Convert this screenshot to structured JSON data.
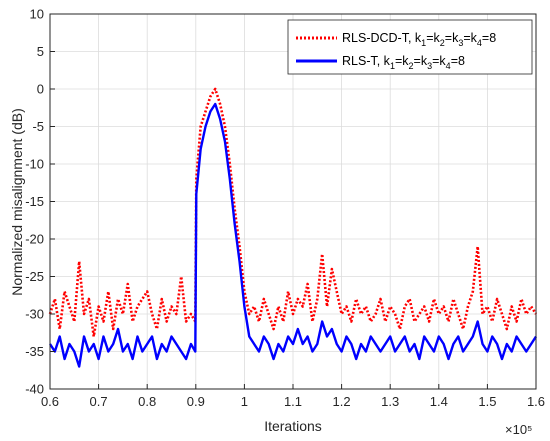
{
  "chart_data": {
    "type": "line",
    "xlabel": "Iterations",
    "ylabel": "Normalized misalignment (dB)",
    "x_multiplier": "×10⁵",
    "x_ticks": [
      "0.6",
      "0.7",
      "0.8",
      "0.9",
      "1",
      "1.1",
      "1.2",
      "1.3",
      "1.4",
      "1.5",
      "1.6"
    ],
    "y_ticks": [
      "-40",
      "-35",
      "-30",
      "-25",
      "-20",
      "-15",
      "-10",
      "-5",
      "0",
      "5",
      "10"
    ],
    "xlim": [
      0.6,
      1.6
    ],
    "ylim": [
      -40,
      10
    ],
    "grid": true,
    "legend_position": "top-right",
    "series": [
      {
        "name": "RLS-DCD-T, k1=k2=k3=k4=8",
        "color": "#ff0000",
        "style": "dotted",
        "x": [
          0.6,
          0.61,
          0.62,
          0.63,
          0.64,
          0.65,
          0.66,
          0.67,
          0.68,
          0.69,
          0.7,
          0.71,
          0.72,
          0.73,
          0.74,
          0.75,
          0.76,
          0.77,
          0.78,
          0.79,
          0.8,
          0.81,
          0.82,
          0.83,
          0.84,
          0.85,
          0.86,
          0.87,
          0.88,
          0.89,
          0.899,
          0.901,
          0.91,
          0.92,
          0.93,
          0.94,
          0.95,
          0.96,
          0.97,
          0.98,
          0.99,
          1.0,
          1.01,
          1.02,
          1.03,
          1.04,
          1.05,
          1.06,
          1.07,
          1.08,
          1.09,
          1.1,
          1.11,
          1.12,
          1.13,
          1.14,
          1.15,
          1.16,
          1.17,
          1.18,
          1.19,
          1.2,
          1.21,
          1.22,
          1.23,
          1.24,
          1.25,
          1.26,
          1.27,
          1.28,
          1.29,
          1.3,
          1.31,
          1.32,
          1.33,
          1.34,
          1.35,
          1.36,
          1.37,
          1.38,
          1.39,
          1.4,
          1.41,
          1.42,
          1.43,
          1.44,
          1.45,
          1.46,
          1.47,
          1.48,
          1.49,
          1.5,
          1.51,
          1.52,
          1.53,
          1.54,
          1.55,
          1.56,
          1.57,
          1.58,
          1.59,
          1.6
        ],
        "y": [
          -30,
          -28,
          -32,
          -27,
          -29,
          -31,
          -23,
          -30,
          -28,
          -33,
          -29,
          -31,
          -27,
          -32,
          -28,
          -30,
          -26,
          -31,
          -29,
          -28,
          -27,
          -30,
          -32,
          -28,
          -31,
          -29,
          -30,
          -25,
          -31,
          -30,
          -31,
          -12,
          -5,
          -3,
          -1,
          0,
          -2,
          -5,
          -10,
          -16,
          -21,
          -27,
          -30,
          -29,
          -31,
          -28,
          -30,
          -32,
          -29,
          -31,
          -27,
          -30,
          -28,
          -29,
          -26,
          -31,
          -28,
          -22,
          -29,
          -24,
          -27,
          -30,
          -29,
          -31,
          -28,
          -30,
          -29,
          -31,
          -30,
          -28,
          -31,
          -29,
          -30,
          -32,
          -29,
          -28,
          -31,
          -30,
          -29,
          -31,
          -28,
          -30,
          -29,
          -31,
          -28,
          -30,
          -32,
          -29,
          -27,
          -21,
          -30,
          -29,
          -31,
          -28,
          -30,
          -32,
          -29,
          -31,
          -28,
          -30,
          -29,
          -30
        ]
      },
      {
        "name": "RLS-T, k1=k2=k3=k4=8",
        "color": "#0000ff",
        "style": "solid",
        "x": [
          0.6,
          0.61,
          0.62,
          0.63,
          0.64,
          0.65,
          0.66,
          0.67,
          0.68,
          0.69,
          0.7,
          0.71,
          0.72,
          0.73,
          0.74,
          0.75,
          0.76,
          0.77,
          0.78,
          0.79,
          0.8,
          0.81,
          0.82,
          0.83,
          0.84,
          0.85,
          0.86,
          0.87,
          0.88,
          0.89,
          0.899,
          0.901,
          0.91,
          0.92,
          0.93,
          0.94,
          0.95,
          0.96,
          0.97,
          0.98,
          0.99,
          1.0,
          1.01,
          1.02,
          1.03,
          1.04,
          1.05,
          1.06,
          1.07,
          1.08,
          1.09,
          1.1,
          1.11,
          1.12,
          1.13,
          1.14,
          1.15,
          1.16,
          1.17,
          1.18,
          1.19,
          1.2,
          1.21,
          1.22,
          1.23,
          1.24,
          1.25,
          1.26,
          1.27,
          1.28,
          1.29,
          1.3,
          1.31,
          1.32,
          1.33,
          1.34,
          1.35,
          1.36,
          1.37,
          1.38,
          1.39,
          1.4,
          1.41,
          1.42,
          1.43,
          1.44,
          1.45,
          1.46,
          1.47,
          1.48,
          1.49,
          1.5,
          1.51,
          1.52,
          1.53,
          1.54,
          1.55,
          1.56,
          1.57,
          1.58,
          1.59,
          1.6
        ],
        "y": [
          -34,
          -35,
          -33,
          -36,
          -34,
          -35,
          -37,
          -33,
          -35,
          -34,
          -36,
          -33,
          -35,
          -34,
          -32,
          -35,
          -34,
          -36,
          -33,
          -35,
          -34,
          -33,
          -36,
          -34,
          -35,
          -33,
          -34,
          -35,
          -36,
          -34,
          -35,
          -14,
          -8,
          -5,
          -3,
          -2,
          -4,
          -7,
          -12,
          -18,
          -23,
          -29,
          -33,
          -34,
          -35,
          -33,
          -34,
          -36,
          -34,
          -35,
          -33,
          -34,
          -32,
          -34,
          -33,
          -35,
          -34,
          -31,
          -33,
          -32,
          -34,
          -35,
          -33,
          -34,
          -36,
          -34,
          -35,
          -33,
          -34,
          -35,
          -34,
          -33,
          -35,
          -34,
          -33,
          -35,
          -34,
          -36,
          -33,
          -34,
          -35,
          -33,
          -34,
          -36,
          -34,
          -33,
          -35,
          -34,
          -33,
          -31,
          -34,
          -35,
          -33,
          -34,
          -36,
          -34,
          -35,
          -33,
          -34,
          -35,
          -34,
          -33
        ]
      }
    ]
  }
}
